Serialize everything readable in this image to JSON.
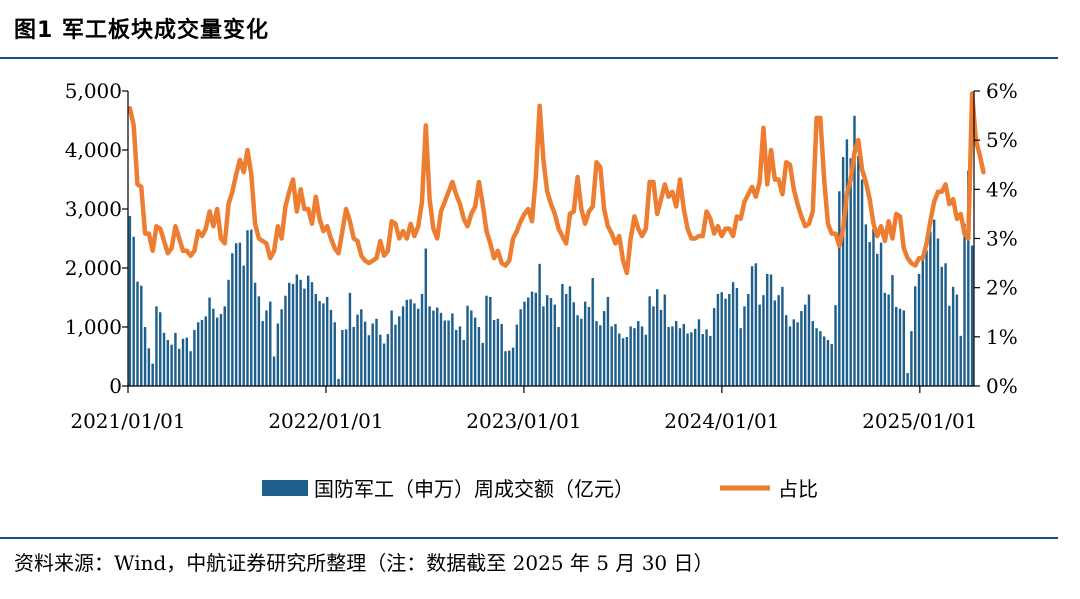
{
  "figure": {
    "title": "图1 军工板块成交量变化",
    "source": "资料来源：Wind，中航证券研究所整理（注：数据截至 2025 年 5 月 30 日）"
  },
  "chart_data": {
    "type": "bar+line",
    "title": "图1 军工板块成交量变化",
    "x_tick_labels": [
      "2021/01/01",
      "2022/01/01",
      "2023/01/01",
      "2024/01/01",
      "2025/01/01"
    ],
    "y_left": {
      "range": [
        0,
        5000
      ],
      "ticks": [
        "0",
        "1,000",
        "2,000",
        "3,000",
        "4,000",
        "5,000"
      ]
    },
    "y_right": {
      "range": [
        0,
        6
      ],
      "unit": "%",
      "ticks": [
        "0%",
        "1%",
        "2%",
        "3%",
        "4%",
        "5%",
        "6%"
      ]
    },
    "series": [
      {
        "name": "国防军工（申万）周成交额（亿元）",
        "kind": "bar",
        "color": "#1f5f8b",
        "values": [
          2880,
          2530,
          1770,
          1700,
          1000,
          640,
          380,
          1350,
          1250,
          900,
          780,
          700,
          900,
          630,
          800,
          820,
          590,
          950,
          1080,
          1120,
          1180,
          1500,
          1310,
          1160,
          1220,
          1350,
          1800,
          2250,
          2420,
          2430,
          2040,
          2640,
          2650,
          1750,
          1520,
          1100,
          1280,
          1430,
          500,
          1060,
          1300,
          1530,
          1750,
          1730,
          1890,
          1800,
          1650,
          1870,
          1760,
          1560,
          1440,
          1400,
          1510,
          1290,
          1080,
          120,
          950,
          960,
          1580,
          1000,
          1210,
          1300,
          1090,
          860,
          1060,
          1140,
          870,
          720,
          880,
          1280,
          1040,
          1180,
          1350,
          1460,
          1470,
          1400,
          1310,
          1560,
          2330,
          1350,
          1280,
          1330,
          1240,
          1110,
          1110,
          1230,
          950,
          1010,
          780,
          1360,
          1280,
          1160,
          1000,
          730,
          1530,
          1510,
          1120,
          1140,
          1050,
          590,
          600,
          650,
          1040,
          1300,
          1430,
          1500,
          1600,
          1580,
          2070,
          1350,
          1540,
          1490,
          1380,
          1000,
          1730,
          1560,
          1690,
          1420,
          1200,
          1140,
          1430,
          1340,
          1830,
          1100,
          1030,
          1270,
          1510,
          1010,
          1050,
          890,
          810,
          830,
          1010,
          980,
          1100,
          1010,
          870,
          1520,
          1350,
          1640,
          1290,
          1550,
          1000,
          1010,
          1100,
          980,
          1050,
          890,
          910,
          970,
          1130,
          880,
          960,
          850,
          1320,
          1560,
          1590,
          1480,
          1560,
          1760,
          1660,
          980,
          1350,
          1560,
          2030,
          2080,
          1380,
          1540,
          1900,
          1890,
          1450,
          1540,
          1680,
          1200,
          1010,
          1130,
          1080,
          1270,
          1380,
          1550,
          1100,
          980,
          930,
          840,
          780,
          710,
          1370,
          3300,
          3880,
          4180,
          3860,
          4580,
          3900,
          3500,
          2740,
          2440,
          2660,
          2240,
          2430,
          1580,
          1550,
          1880,
          1340,
          1310,
          1280,
          220,
          930,
          1690,
          1900,
          2130,
          2300,
          2620,
          2820,
          2500,
          2020,
          2080,
          1360,
          1680,
          1550,
          850,
          2750,
          3650,
          2380
        ]
      },
      {
        "name": "占比",
        "kind": "line",
        "color": "#ed7d31",
        "values": [
          5.65,
          5.3,
          4.1,
          4.05,
          3.1,
          3.1,
          2.75,
          3.25,
          3.2,
          2.95,
          2.7,
          2.8,
          3.25,
          3.0,
          2.75,
          2.75,
          2.65,
          2.75,
          3.15,
          3.05,
          3.2,
          3.55,
          3.25,
          3.6,
          3.0,
          2.9,
          3.7,
          3.95,
          4.3,
          4.6,
          4.35,
          4.8,
          4.3,
          3.3,
          3.0,
          2.95,
          2.9,
          2.6,
          2.75,
          3.25,
          3.0,
          3.65,
          3.95,
          4.2,
          3.55,
          4.0,
          3.6,
          3.6,
          3.3,
          3.85,
          3.4,
          3.15,
          3.25,
          3.0,
          2.8,
          2.7,
          3.15,
          3.6,
          3.35,
          3.0,
          2.95,
          2.65,
          2.55,
          2.5,
          2.55,
          2.6,
          2.95,
          2.65,
          2.75,
          3.35,
          3.3,
          3.0,
          3.15,
          3.0,
          3.3,
          3.05,
          3.25,
          3.75,
          5.3,
          3.8,
          3.2,
          3.0,
          3.55,
          3.75,
          3.95,
          4.15,
          3.9,
          3.7,
          3.4,
          3.25,
          3.5,
          3.65,
          4.15,
          3.7,
          3.15,
          2.9,
          2.6,
          2.75,
          2.5,
          2.45,
          2.55,
          3.0,
          3.15,
          3.35,
          3.5,
          3.6,
          3.35,
          4.25,
          5.7,
          4.6,
          3.95,
          3.7,
          3.5,
          3.2,
          3.05,
          2.9,
          3.5,
          3.55,
          4.25,
          3.6,
          3.3,
          3.55,
          3.65,
          4.55,
          4.45,
          3.6,
          3.25,
          3.1,
          2.9,
          3.05,
          2.55,
          2.3,
          3.0,
          3.45,
          3.2,
          3.05,
          3.2,
          4.15,
          4.15,
          3.5,
          3.8,
          4.1,
          3.85,
          3.95,
          3.65,
          4.2,
          3.6,
          3.2,
          3.0,
          3.0,
          3.05,
          3.05,
          3.55,
          3.4,
          3.1,
          3.25,
          3.05,
          3.2,
          3.2,
          3.05,
          3.45,
          3.4,
          3.75,
          3.9,
          4.05,
          3.85,
          4.15,
          5.25,
          4.1,
          4.8,
          4.2,
          4.2,
          3.9,
          4.55,
          4.5,
          4.0,
          3.7,
          3.45,
          3.25,
          3.3,
          3.55,
          5.45,
          5.45,
          4.2,
          3.3,
          3.1,
          3.1,
          2.85,
          3.2,
          3.9,
          4.2,
          4.75,
          5.0,
          4.4,
          4.15,
          3.8,
          3.3,
          3.05,
          3.25,
          2.95,
          3.35,
          3.0,
          3.5,
          3.45,
          2.8,
          2.6,
          2.5,
          2.45,
          2.6,
          2.6,
          2.9,
          3.35,
          3.75,
          3.95,
          3.95,
          4.1,
          3.7,
          3.8,
          3.4,
          3.5,
          3.1,
          3.0,
          5.95,
          5.0,
          4.7,
          4.35
        ]
      }
    ],
    "legend_position": "bottom-center",
    "grid": false
  }
}
